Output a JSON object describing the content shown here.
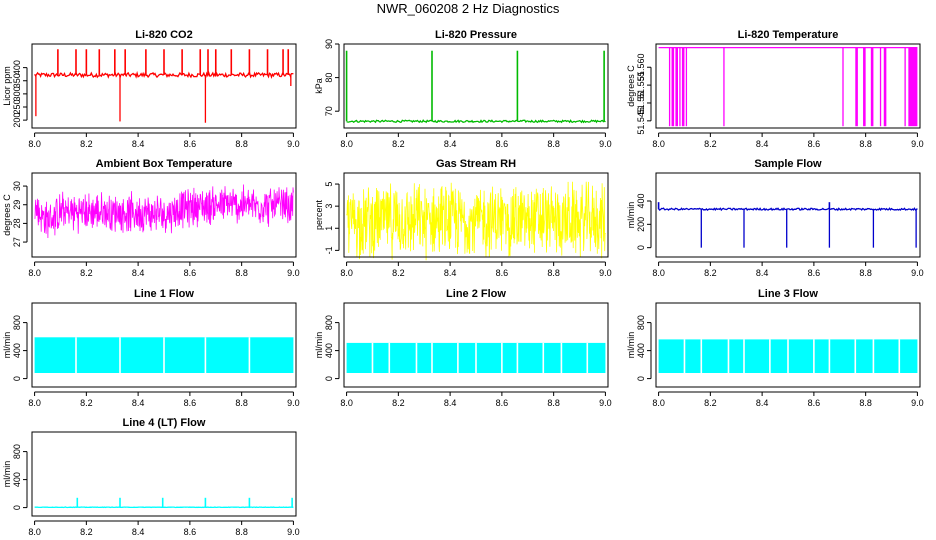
{
  "title": "NWR_060208  2 Hz Diagnostics",
  "chart_data": [
    {
      "id": "co2",
      "type": "line",
      "title": "Li-820 CO2",
      "ylabel": "Licor ppm",
      "color": "#ff0000",
      "xlim": [
        7.99,
        9.01
      ],
      "ylim": [
        170,
        490
      ],
      "xticks": [
        "8.0",
        "8.2",
        "8.4",
        "8.6",
        "8.8",
        "9.0"
      ],
      "yticks": [
        {
          "v": 200,
          "label": "200"
        },
        {
          "v": 250,
          "label": "250"
        },
        {
          "v": 300,
          "label": "300"
        },
        {
          "v": 350,
          "label": "350"
        },
        {
          "v": 400,
          "label": "400"
        }
      ],
      "baseline": 372,
      "noise": 8,
      "spikes_up": [
        8.09,
        8.16,
        8.2,
        8.25,
        8.31,
        8.35,
        8.43,
        8.5,
        8.57,
        8.64,
        8.67,
        8.7,
        8.76,
        8.83,
        8.9,
        8.96,
        8.98
      ],
      "spike_up_value": 470,
      "spikes_down": [
        {
          "x": 8.005,
          "v": 215
        },
        {
          "x": 8.33,
          "v": 195
        },
        {
          "x": 8.66,
          "v": 190
        },
        {
          "x": 8.99,
          "v": 330
        }
      ]
    },
    {
      "id": "pressure",
      "type": "line",
      "title": "Li-820 Pressure",
      "ylabel": "kPa",
      "color": "#00bb00",
      "xlim": [
        7.99,
        9.01
      ],
      "ylim": [
        65,
        90
      ],
      "xticks": [
        "8.0",
        "8.2",
        "8.4",
        "8.6",
        "8.8",
        "9.0"
      ],
      "yticks": [
        {
          "v": 70,
          "label": "70"
        },
        {
          "v": 80,
          "label": "80"
        },
        {
          "v": 90,
          "label": "90"
        }
      ],
      "baseline": 67,
      "noise": 0.3,
      "spikes_up": [
        8.0,
        8.33,
        8.66,
        8.995
      ],
      "spike_up_value": 88,
      "spikes_down": []
    },
    {
      "id": "temperature",
      "type": "line",
      "title": "Li-820 Temperature",
      "ylabel": "degrees C",
      "color": "#ff00ff",
      "xlim": [
        7.99,
        9.01
      ],
      "ylim": [
        51.543,
        51.5665
      ],
      "xticks": [
        "8.0",
        "8.2",
        "8.4",
        "8.6",
        "8.8",
        "9.0"
      ],
      "yticks": [
        {
          "v": 51.545,
          "label": "51.545"
        },
        {
          "v": 51.55,
          "label": "51.55"
        },
        {
          "v": 51.555,
          "label": "51.555"
        },
        {
          "v": 51.56,
          "label": "51.560"
        }
      ],
      "baseline": 51.5655,
      "noise": 0,
      "spikes_down_value": 51.5435,
      "drop_bands": [
        [
          8.04,
          8.045
        ],
        [
          8.05,
          8.06
        ],
        [
          8.065,
          8.075
        ],
        [
          8.08,
          8.085
        ],
        [
          8.09,
          8.1
        ],
        [
          8.105,
          8.11
        ],
        [
          8.25,
          8.255
        ],
        [
          8.71,
          8.715
        ],
        [
          8.76,
          8.77
        ],
        [
          8.79,
          8.8
        ],
        [
          8.82,
          8.83
        ],
        [
          8.855,
          8.86
        ],
        [
          8.87,
          8.88
        ],
        [
          8.95,
          8.955
        ],
        [
          8.965,
          9.0
        ]
      ]
    },
    {
      "id": "ambient",
      "type": "noise",
      "title": "Ambient Box Temperature",
      "ylabel": "degrees C",
      "color": "#ff00ff",
      "xlim": [
        7.99,
        9.01
      ],
      "ylim": [
        26.2,
        30.7
      ],
      "xticks": [
        "8.0",
        "8.2",
        "8.4",
        "8.6",
        "8.8",
        "9.0"
      ],
      "yticks": [
        {
          "v": 27,
          "label": "27"
        },
        {
          "v": 28,
          "label": "28"
        },
        {
          "v": 29,
          "label": "29"
        },
        {
          "v": 30,
          "label": "30"
        }
      ],
      "center": [
        [
          8.0,
          28.8
        ],
        [
          8.05,
          28.1
        ],
        [
          8.1,
          28.6
        ],
        [
          8.3,
          28.6
        ],
        [
          8.5,
          28.5
        ],
        [
          8.6,
          28.9
        ],
        [
          8.7,
          29.0
        ],
        [
          9.0,
          28.9
        ]
      ],
      "amp": 1.2
    },
    {
      "id": "rh",
      "type": "noise",
      "title": "Gas Stream RH",
      "ylabel": "percent",
      "color": "#ffff00",
      "xlim": [
        7.99,
        9.01
      ],
      "ylim": [
        -1.6,
        6
      ],
      "xticks": [
        "8.0",
        "8.2",
        "8.4",
        "8.6",
        "8.8",
        "9.0"
      ],
      "yticks": [
        {
          "v": -1,
          "label": "-1"
        },
        {
          "v": 1,
          "label": "1"
        },
        {
          "v": 3,
          "label": "3"
        },
        {
          "v": 5,
          "label": "5"
        }
      ],
      "center": [
        [
          8.0,
          1.7
        ],
        [
          9.0,
          1.7
        ]
      ],
      "amp": 3.8
    },
    {
      "id": "sample",
      "type": "line",
      "title": "Sample Flow",
      "ylabel": "ml/min",
      "color": "#0000cc",
      "xlim": [
        7.99,
        9.01
      ],
      "ylim": [
        -80,
        640
      ],
      "xticks": [
        "8.0",
        "8.2",
        "8.4",
        "8.6",
        "8.8",
        "9.0"
      ],
      "yticks": [
        {
          "v": 0,
          "label": "0"
        },
        {
          "v": 200,
          "label": "200"
        },
        {
          "v": 400,
          "label": "400"
        }
      ],
      "baseline": 330,
      "noise": 8,
      "spikes_up": [
        8.0,
        8.66
      ],
      "spike_up_value": 390,
      "spikes_down": [
        {
          "x": 8.165,
          "v": 0
        },
        {
          "x": 8.33,
          "v": 0
        },
        {
          "x": 8.495,
          "v": 0
        },
        {
          "x": 8.66,
          "v": 0
        },
        {
          "x": 8.83,
          "v": 0
        },
        {
          "x": 8.995,
          "v": 0
        }
      ]
    },
    {
      "id": "line1",
      "type": "block",
      "title": "Line 1 Flow",
      "ylabel": "ml/min",
      "color": "#00ffff",
      "xlim": [
        7.99,
        9.01
      ],
      "ylim": [
        -120,
        1080
      ],
      "xticks": [
        "8.0",
        "8.2",
        "8.4",
        "8.6",
        "8.8",
        "9.0"
      ],
      "yticks": [
        {
          "v": 0,
          "label": "0"
        },
        {
          "v": 400,
          "label": "400"
        },
        {
          "v": 800,
          "label": "800"
        }
      ],
      "low": 80,
      "high": 590,
      "gaps": [
        8.16,
        8.33,
        8.5,
        8.66,
        8.83
      ]
    },
    {
      "id": "line2",
      "type": "block",
      "title": "Line 2 Flow",
      "ylabel": "ml/min",
      "color": "#00ffff",
      "xlim": [
        7.99,
        9.01
      ],
      "ylim": [
        -120,
        1080
      ],
      "xticks": [
        "8.0",
        "8.2",
        "8.4",
        "8.6",
        "8.8",
        "9.0"
      ],
      "yticks": [
        {
          "v": 0,
          "label": "0"
        },
        {
          "v": 400,
          "label": "400"
        },
        {
          "v": 800,
          "label": "800"
        }
      ],
      "low": 80,
      "high": 510,
      "gaps": [
        8.1,
        8.165,
        8.27,
        8.33,
        8.43,
        8.5,
        8.6,
        8.66,
        8.76,
        8.83,
        8.93
      ]
    },
    {
      "id": "line3",
      "type": "block",
      "title": "Line 3 Flow",
      "ylabel": "ml/min",
      "color": "#00ffff",
      "xlim": [
        7.99,
        9.01
      ],
      "ylim": [
        -120,
        1080
      ],
      "xticks": [
        "8.0",
        "8.2",
        "8.4",
        "8.6",
        "8.8",
        "9.0"
      ],
      "yticks": [
        {
          "v": 0,
          "label": "0"
        },
        {
          "v": 400,
          "label": "400"
        },
        {
          "v": 800,
          "label": "800"
        }
      ],
      "low": 80,
      "high": 560,
      "gaps": [
        8.1,
        8.165,
        8.27,
        8.33,
        8.43,
        8.5,
        8.6,
        8.66,
        8.76,
        8.83,
        8.93
      ]
    },
    {
      "id": "line4",
      "type": "line",
      "title": "Line 4 (LT) Flow",
      "ylabel": "ml/min",
      "color": "#00ffff",
      "xlim": [
        7.99,
        9.01
      ],
      "ylim": [
        -120,
        1080
      ],
      "xticks": [
        "8.0",
        "8.2",
        "8.4",
        "8.6",
        "8.8",
        "9.0"
      ],
      "yticks": [
        {
          "v": 0,
          "label": "0"
        },
        {
          "v": 400,
          "label": "400"
        },
        {
          "v": 800,
          "label": "800"
        }
      ],
      "baseline": 5,
      "noise": 3,
      "spikes_up": [
        8.165,
        8.33,
        8.495,
        8.66,
        8.83,
        8.995
      ],
      "spike_up_value": 140,
      "spikes_down": []
    }
  ]
}
